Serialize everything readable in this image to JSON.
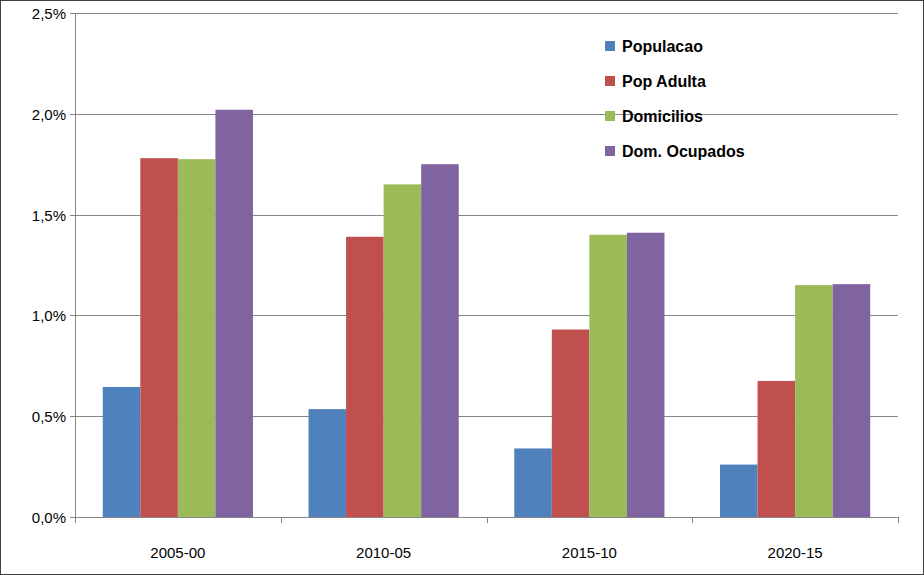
{
  "chart_data": {
    "type": "bar",
    "categories": [
      "2005-00",
      "2010-05",
      "2015-10",
      "2020-15"
    ],
    "series": [
      {
        "name": "Populacao",
        "color": "#4f81bd",
        "values": [
          0.645,
          0.535,
          0.34,
          0.26
        ]
      },
      {
        "name": "Pop Adulta",
        "color": "#c0504d",
        "values": [
          1.78,
          1.39,
          0.93,
          0.675
        ]
      },
      {
        "name": "Domicilios",
        "color": "#9bbb59",
        "values": [
          1.775,
          1.65,
          1.4,
          1.15
        ]
      },
      {
        "name": "Dom. Ocupados",
        "color": "#8064a2",
        "values": [
          2.02,
          1.75,
          1.41,
          1.155
        ]
      }
    ],
    "ylim": [
      0,
      2.5
    ],
    "yticks": [
      {
        "value": 0,
        "label": "0,0%"
      },
      {
        "value": 0.5,
        "label": "0,5%"
      },
      {
        "value": 1,
        "label": "1,0%"
      },
      {
        "value": 1.5,
        "label": "1,5%"
      },
      {
        "value": 2,
        "label": "2,0%"
      },
      {
        "value": 2.5,
        "label": "2,5%"
      }
    ],
    "grid": true,
    "legend": "top-right"
  }
}
